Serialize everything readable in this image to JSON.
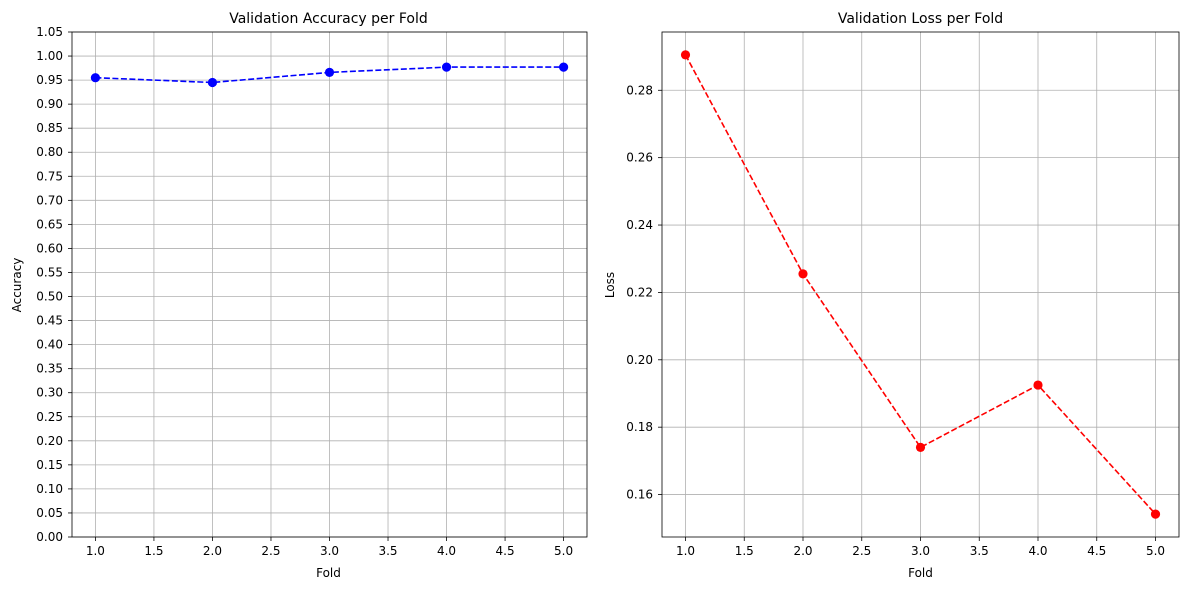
{
  "chart_data": [
    {
      "type": "line",
      "title": "Validation Accuracy per Fold",
      "xlabel": "Fold",
      "ylabel": "Accuracy",
      "x": [
        1,
        2,
        3,
        4,
        5
      ],
      "series": [
        {
          "values": [
            0.955,
            0.945,
            0.966,
            0.977,
            0.977
          ],
          "color": "#0000ff",
          "line_style": "dashed",
          "marker": "circle"
        }
      ],
      "xlim": [
        0.8,
        5.2
      ],
      "ylim": [
        0,
        1.05
      ],
      "xticks": [
        "1.0",
        "1.5",
        "2.0",
        "2.5",
        "3.0",
        "3.5",
        "4.0",
        "4.5",
        "5.0"
      ],
      "yticks": [
        "0.00",
        "0.05",
        "0.10",
        "0.15",
        "0.20",
        "0.25",
        "0.30",
        "0.35",
        "0.40",
        "0.45",
        "0.50",
        "0.55",
        "0.60",
        "0.65",
        "0.70",
        "0.75",
        "0.80",
        "0.85",
        "0.90",
        "0.95",
        "1.00",
        "1.05"
      ],
      "grid": true
    },
    {
      "type": "line",
      "title": "Validation Loss per Fold",
      "xlabel": "Fold",
      "ylabel": "Loss",
      "x": [
        1,
        2,
        3,
        4,
        5
      ],
      "series": [
        {
          "values": [
            0.2905,
            0.2255,
            0.174,
            0.1925,
            0.1542
          ],
          "color": "#ff0000",
          "line_style": "dashed",
          "marker": "circle"
        }
      ],
      "xlim": [
        0.8,
        5.2
      ],
      "ylim": [
        0.1474,
        0.2973
      ],
      "xticks": [
        "1.0",
        "1.5",
        "2.0",
        "2.5",
        "3.0",
        "3.5",
        "4.0",
        "4.5",
        "5.0"
      ],
      "yticks": [
        "0.16",
        "0.18",
        "0.20",
        "0.22",
        "0.24",
        "0.26",
        "0.28"
      ],
      "grid": true
    }
  ]
}
